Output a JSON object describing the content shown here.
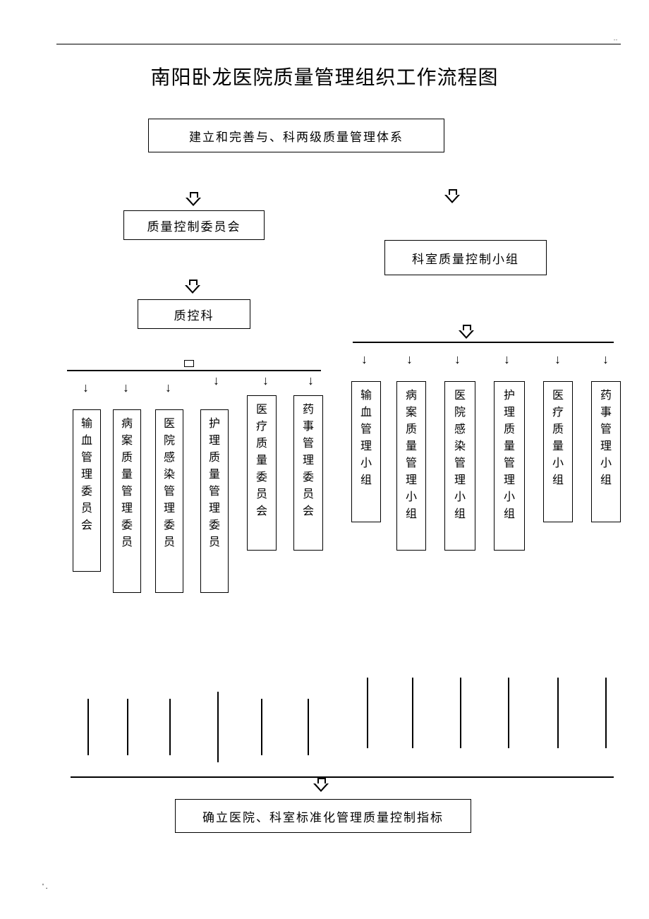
{
  "title": "南阳卧龙医院质量管理组织工作流程图",
  "boxes": {
    "top": "建立和完善与、科两级质量管理体系",
    "qc_committee": "质量控制委员会",
    "dept_group": "科室质量控制小组",
    "qc_dept": "质控科",
    "bottom": "确立医院、科室标准化管理质量控制指标"
  },
  "left_committees": [
    "输血管理委员会",
    "病案质量管理委员",
    "医院感染管理委员",
    "护理质量管理委员",
    "医疗质量委员会",
    "药事管理委员会"
  ],
  "right_groups": [
    "输血管理小组",
    "病案质量管理小组",
    "医院感染管理小组",
    "护理质量管理小组",
    "医疗质量小组",
    "药事管理小组"
  ],
  "footer": "' .",
  "topdots": ".."
}
